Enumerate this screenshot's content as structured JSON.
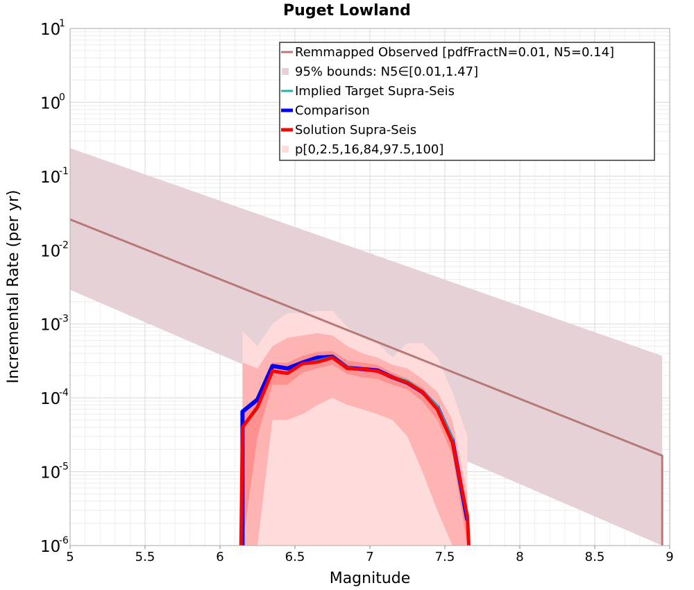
{
  "chart_data": {
    "type": "line",
    "title": "Puget Lowland",
    "xlabel": "Magnitude",
    "ylabel": "Incremental Rate (per yr)",
    "xlim": [
      5,
      9
    ],
    "ylim": [
      1e-06,
      10
    ],
    "yscale": "log",
    "grid": true,
    "legend_position": "top-right",
    "x_ticks": [
      "5",
      "5.5",
      "6",
      "6.5",
      "7",
      "7.5",
      "8",
      "8.5",
      "9"
    ],
    "y_ticks": [
      {
        "base": "10",
        "exp": "1"
      },
      {
        "base": "10",
        "exp": "0"
      },
      {
        "base": "10",
        "exp": "-1"
      },
      {
        "base": "10",
        "exp": "-2"
      },
      {
        "base": "10",
        "exp": "-3"
      },
      {
        "base": "10",
        "exp": "-4"
      },
      {
        "base": "10",
        "exp": "-5"
      },
      {
        "base": "10",
        "exp": "-6"
      }
    ],
    "colors": {
      "observed": "#b87878",
      "bounds": "#e6d2d6",
      "implied": "#20b0b0",
      "comparison": "#0000ff",
      "solution": "#ff0000",
      "pct_light": "#ffdcdc",
      "pct_mid": "#ffb4b4",
      "pct_dark": "#ff9090"
    },
    "legend": [
      {
        "key": "observed",
        "label": "Remmapped Observed [pdfFractN=0.01, N5=0.14]",
        "style": "line"
      },
      {
        "key": "bounds",
        "label": "95% bounds: N5∈[0.01,1.47]",
        "style": "box"
      },
      {
        "key": "implied",
        "label": "Implied Target Supra-Seis",
        "style": "line"
      },
      {
        "key": "comparison",
        "label": "Comparison",
        "style": "thick"
      },
      {
        "key": "solution",
        "label": "Solution Supra-Seis",
        "style": "thick"
      },
      {
        "key": "pct_light",
        "label": "p[0,2.5,16,84,97.5,100]",
        "style": "box"
      }
    ],
    "observed": {
      "x": [
        5.0,
        8.95,
        8.95
      ],
      "y": [
        0.026,
        1.65e-05,
        1e-06
      ]
    },
    "bounds_band": {
      "x": [
        5.0,
        8.95
      ],
      "upper": [
        0.24,
        0.00037
      ],
      "lower": [
        0.0029,
        1.8e-07
      ]
    },
    "pct_outer": {
      "x": [
        6.15,
        6.25,
        6.35,
        6.45,
        6.55,
        6.65,
        6.75,
        6.85,
        6.95,
        7.05,
        7.15,
        7.25,
        7.35,
        7.45,
        7.55,
        7.65
      ],
      "upper": [
        0.0008,
        0.0005,
        0.001,
        0.0014,
        0.0014,
        0.0015,
        0.0015,
        0.0009,
        0.00065,
        0.00055,
        0.00035,
        0.00055,
        0.00055,
        0.00035,
        0.00012,
        3e-05
      ],
      "lower": [
        1e-06,
        1e-06,
        1e-06,
        1e-06,
        1e-06,
        1e-06,
        1e-06,
        1e-06,
        1e-06,
        1e-06,
        1e-06,
        1e-06,
        1e-06,
        1e-06,
        1e-06,
        1e-06
      ]
    },
    "pct_mid": {
      "x": [
        6.15,
        6.25,
        6.35,
        6.45,
        6.55,
        6.65,
        6.75,
        6.85,
        6.95,
        7.05,
        7.15,
        7.25,
        7.35,
        7.45,
        7.55,
        7.65
      ],
      "upper": [
        0.0003,
        0.00025,
        0.0005,
        0.00065,
        0.0007,
        0.00075,
        0.0007,
        0.0005,
        0.0004,
        0.00035,
        0.00028,
        0.00025,
        0.00018,
        0.00012,
        5e-05,
        5e-06
      ],
      "lower": [
        1e-06,
        1e-06,
        5e-05,
        5e-05,
        6e-05,
        8e-05,
        0.0001,
        8e-05,
        7e-05,
        6e-05,
        5e-05,
        3e-05,
        1e-05,
        3e-06,
        1e-06,
        1e-06
      ]
    },
    "pct_inner": {
      "x": [
        6.15,
        6.25,
        6.35,
        6.45,
        6.55,
        6.65,
        6.75,
        6.85,
        6.95,
        7.05,
        7.15,
        7.25,
        7.35,
        7.45,
        7.55,
        7.65
      ],
      "upper": [
        6e-05,
        9e-05,
        0.0003,
        0.0003,
        0.00037,
        0.00042,
        0.00043,
        0.00032,
        0.0003,
        0.00028,
        0.00022,
        0.00018,
        0.00014,
        8e-05,
        2.5e-05,
        3e-06
      ],
      "lower": [
        1e-06,
        3e-05,
        0.00015,
        0.00015,
        0.00022,
        0.00025,
        0.00028,
        0.00021,
        0.00019,
        0.00018,
        0.00015,
        0.00013,
        9e-05,
        5e-05,
        1.7e-05,
        1e-06
      ]
    },
    "series": [
      {
        "name": "Comparison",
        "key": "comparison",
        "x": [
          6.15,
          6.15,
          6.25,
          6.35,
          6.45,
          6.55,
          6.65,
          6.75,
          6.85,
          6.95,
          7.05,
          7.15,
          7.25,
          7.35,
          7.45,
          7.55,
          7.65
        ],
        "y": [
          1e-06,
          6.5e-05,
          9.5e-05,
          0.00027,
          0.00025,
          0.0003,
          0.00035,
          0.00036,
          0.000255,
          0.000245,
          0.000235,
          0.00019,
          0.00016,
          0.00012,
          7.5e-05,
          2.7e-05,
          2.2e-06
        ]
      },
      {
        "name": "Implied Target Supra-Seis",
        "key": "implied",
        "x": [
          6.15,
          6.25,
          6.35,
          6.45,
          6.55,
          6.65,
          6.75,
          6.85,
          6.95,
          7.05,
          7.15,
          7.25,
          7.35,
          7.45,
          7.55,
          7.65
        ],
        "y": [
          4e-05,
          7e-05,
          0.00023,
          0.00022,
          0.00029,
          0.00032,
          0.00036,
          0.00026,
          0.000245,
          0.000235,
          0.000195,
          0.00017,
          0.000125,
          7.8e-05,
          2.9e-05,
          2.6e-06
        ]
      },
      {
        "name": "Solution Supra-Seis",
        "key": "solution",
        "x": [
          6.14,
          6.15,
          6.25,
          6.35,
          6.45,
          6.55,
          6.65,
          6.75,
          6.85,
          6.95,
          7.05,
          7.15,
          7.25,
          7.35,
          7.45,
          7.55,
          7.65,
          7.66
        ],
        "y": [
          1e-06,
          4e-05,
          7.5e-05,
          0.00023,
          0.000215,
          0.00029,
          0.000305,
          0.00035,
          0.00025,
          0.000245,
          0.00023,
          0.00019,
          0.00016,
          0.00012,
          7e-05,
          2.5e-05,
          2.5e-06,
          1e-06
        ]
      }
    ]
  }
}
